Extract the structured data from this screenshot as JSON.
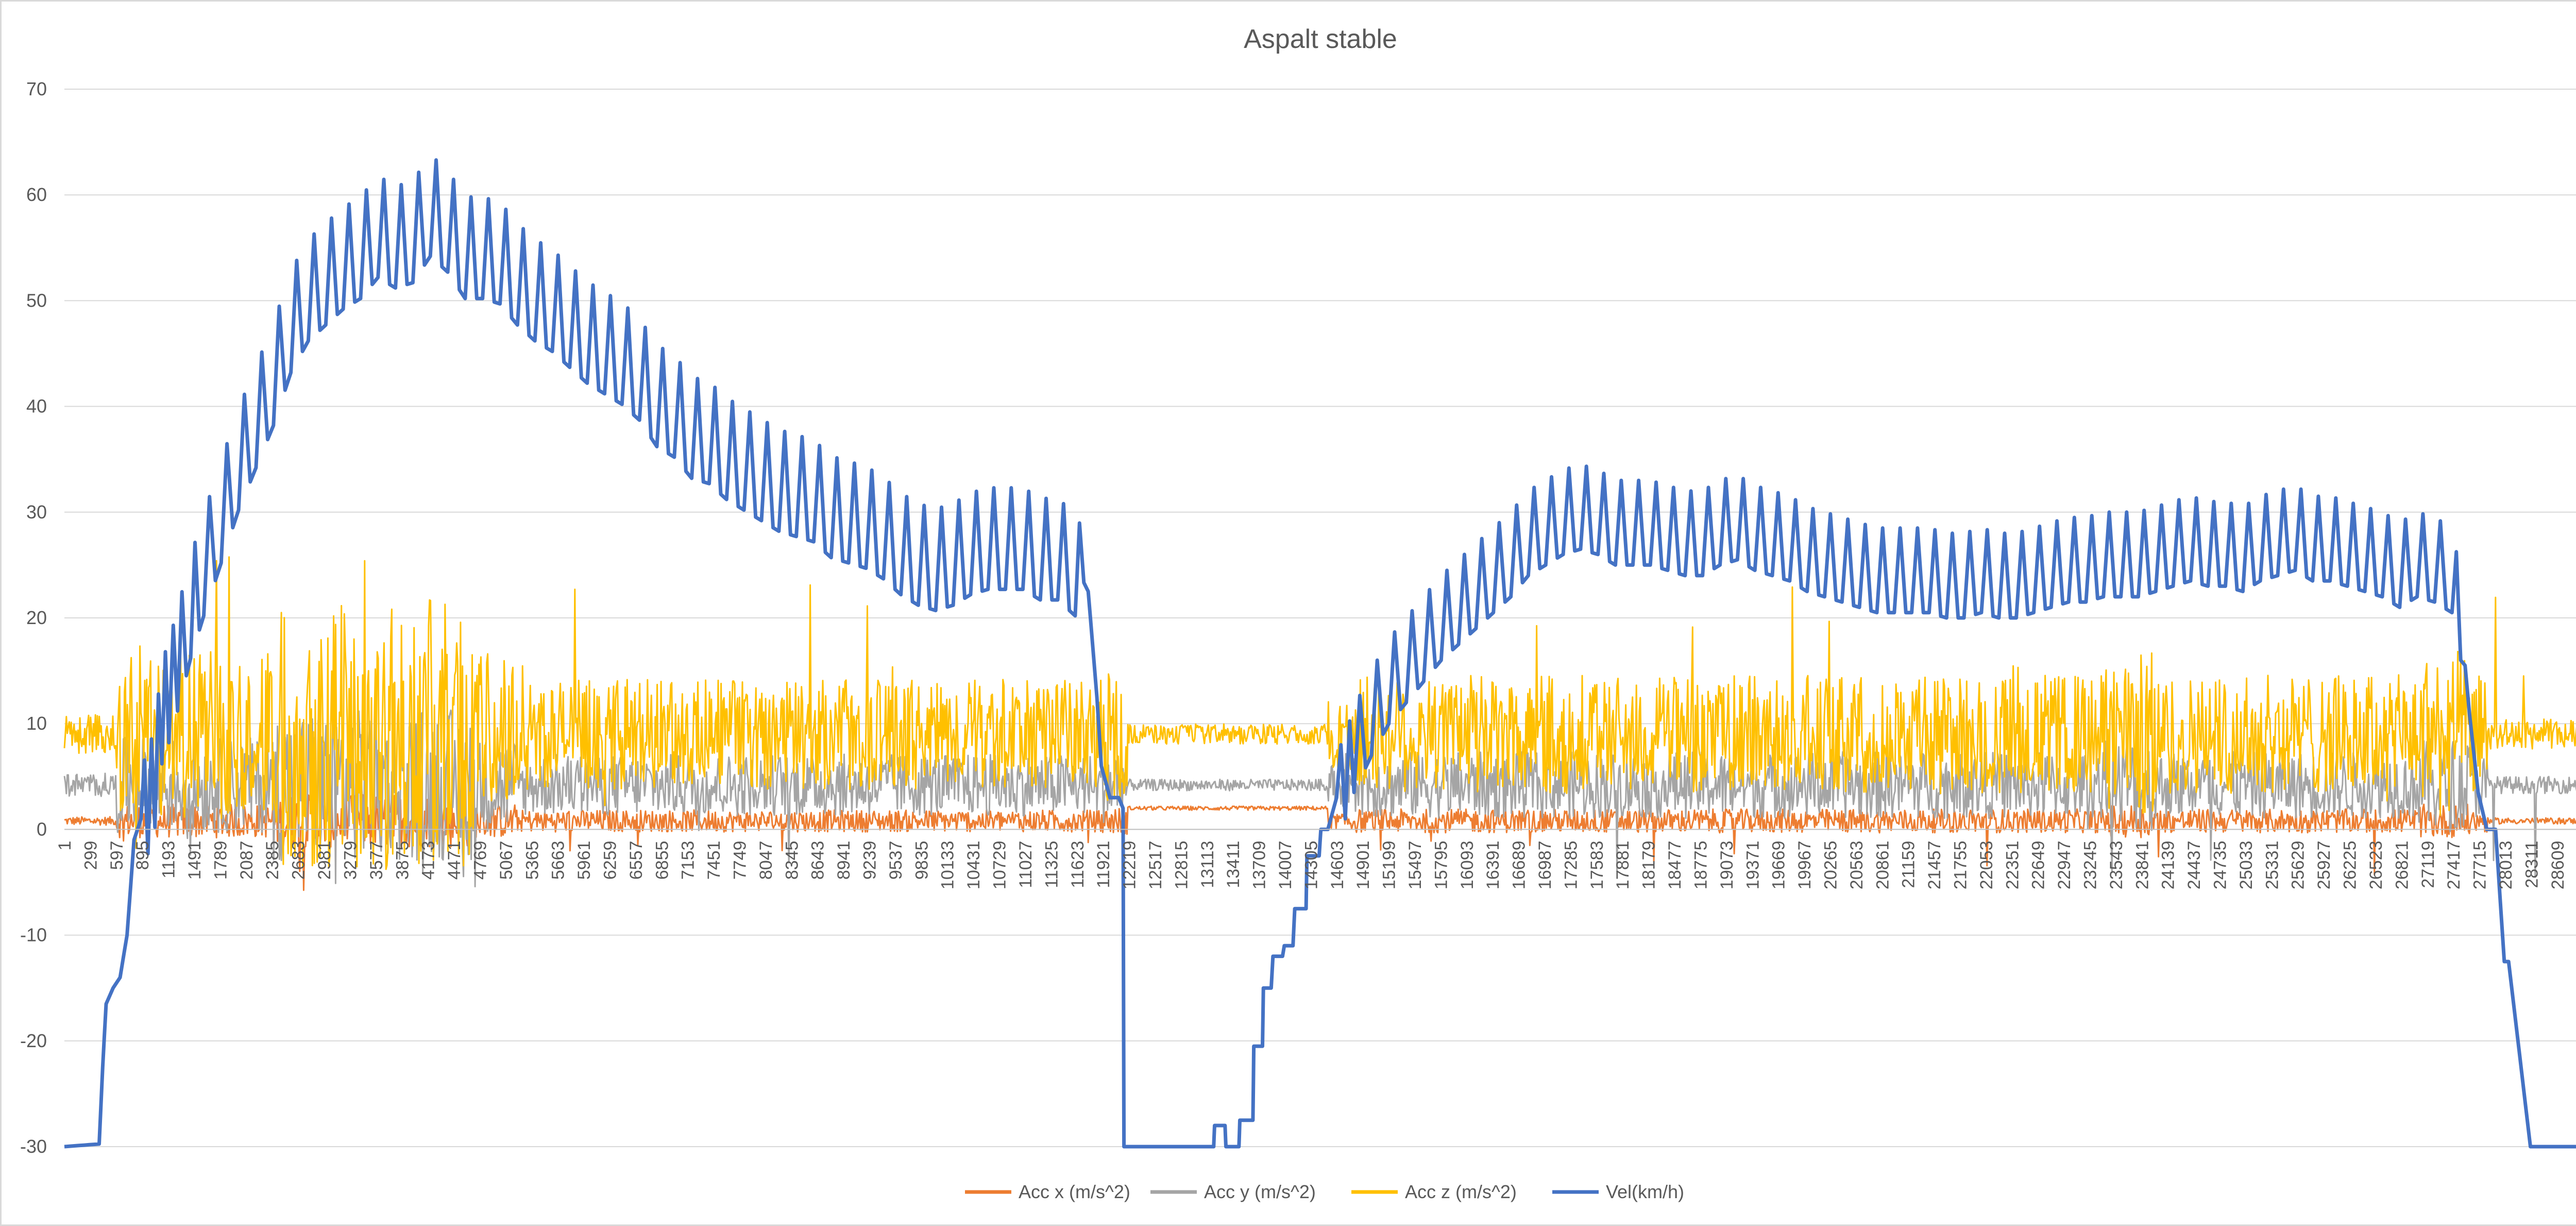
{
  "chart_data": {
    "type": "line",
    "title": "Aspalt stable",
    "legend_position": "bottom",
    "grid": true,
    "primary_axis": {
      "ylim": [
        -30,
        70
      ],
      "ticks": [
        "-30",
        "-20",
        "-10",
        "0",
        "10",
        "20",
        "30",
        "40",
        "50",
        "60",
        "70"
      ]
    },
    "secondary_axis": {
      "ylim": [
        0,
        20
      ],
      "ticks": [
        "0",
        "2",
        "4",
        "6",
        "8",
        "10",
        "12",
        "14",
        "16",
        "18",
        "20"
      ]
    },
    "x_range": [
      1,
      28900
    ],
    "x_tick_labels": [
      "1",
      "299",
      "597",
      "895",
      "1193",
      "1491",
      "1789",
      "2087",
      "2385",
      "2683",
      "2981",
      "3279",
      "3577",
      "3875",
      "4173",
      "4471",
      "4769",
      "5067",
      "5365",
      "5663",
      "5961",
      "6259",
      "6557",
      "6855",
      "7153",
      "7451",
      "7749",
      "8047",
      "8345",
      "8643",
      "8941",
      "9239",
      "9537",
      "9835",
      "10133",
      "10431",
      "10729",
      "11027",
      "11325",
      "11623",
      "11921",
      "12219",
      "12517",
      "12815",
      "13113",
      "13411",
      "13709",
      "14007",
      "14305",
      "14603",
      "14901",
      "15199",
      "15497",
      "15795",
      "16093",
      "16391",
      "16689",
      "16987",
      "17285",
      "17583",
      "17881",
      "18179",
      "18477",
      "18775",
      "19073",
      "19371",
      "19669",
      "19967",
      "20265",
      "20563",
      "20861",
      "21159",
      "21457",
      "21755",
      "22053",
      "22351",
      "22649",
      "22947",
      "23245",
      "23543",
      "23841",
      "24139",
      "24437",
      "24735",
      "25033",
      "25331",
      "25629",
      "25927",
      "26225",
      "26523",
      "26821",
      "27119",
      "27417",
      "27715",
      "28013",
      "28311",
      "28609"
    ],
    "series": [
      {
        "name": "Acc x (m/s^2)",
        "color": "#ED7D31",
        "axis": "primary",
        "profile": "acc_x"
      },
      {
        "name": "Acc y (m/s^2)",
        "color": "#A5A5A5",
        "axis": "primary",
        "profile": "acc_y"
      },
      {
        "name": "Acc z (m/s^2)",
        "color": "#FFC000",
        "axis": "primary",
        "profile": "acc_z"
      },
      {
        "name": "Vel(km/h)",
        "color": "#4472C4",
        "axis": "secondary",
        "x": [
          1,
          400,
          440,
          480,
          560,
          640,
          720,
          800,
          880,
          960,
          1040,
          1120,
          1200,
          1300,
          1450,
          1600,
          1800,
          2000,
          2200,
          2400,
          2600,
          2800,
          3000,
          3200,
          3400,
          3600,
          3800,
          4000,
          4200,
          4400,
          4600,
          4800,
          5000,
          5200,
          5400,
          5600,
          5800,
          6000,
          6200,
          6400,
          6600,
          6800,
          7000,
          7200,
          7400,
          7600,
          7800,
          8000,
          8200,
          8400,
          8600,
          8800,
          9000,
          9200,
          9400,
          9600,
          9800,
          10000,
          10200,
          10400,
          10600,
          10800,
          11000,
          11200,
          11400,
          11600,
          11750,
          11800,
          11850,
          11900,
          12000,
          12100,
          12150,
          12160,
          12500,
          12800,
          13100,
          13190,
          13200,
          13320,
          13330,
          13480,
          13490,
          13640,
          13650,
          13750,
          13760,
          13850,
          13870,
          13980,
          14000,
          14100,
          14120,
          14250,
          14260,
          14400,
          14420,
          14500,
          14600,
          14700,
          14800,
          15000,
          15200,
          15400,
          15600,
          15800,
          16000,
          16200,
          16400,
          16600,
          16800,
          17000,
          17200,
          17400,
          17600,
          17800,
          18000,
          18200,
          18400,
          18600,
          18800,
          19000,
          19200,
          19400,
          19600,
          19800,
          20000,
          20200,
          20400,
          20600,
          20800,
          21000,
          21200,
          21400,
          21600,
          21800,
          22000,
          22200,
          22400,
          22600,
          22800,
          23000,
          23200,
          23400,
          23600,
          23800,
          24000,
          24200,
          24400,
          24600,
          24800,
          25000,
          25200,
          25400,
          25600,
          25800,
          26000,
          26200,
          26400,
          26600,
          26800,
          27000,
          27200,
          27400,
          27500,
          27600,
          27700,
          27800,
          27900,
          28000,
          28050,
          28300,
          28320,
          28900
        ],
        "y": [
          0.0,
          0.05,
          1.5,
          2.7,
          3.0,
          3.2,
          4.0,
          5.8,
          6.2,
          6.5,
          7.0,
          8.2,
          8.6,
          9.2,
          10.2,
          11.0,
          12.0,
          13.0,
          13.8,
          14.6,
          15.6,
          16.2,
          16.5,
          16.8,
          17.0,
          17.4,
          17.2,
          17.3,
          17.8,
          17.5,
          17.0,
          17.0,
          16.9,
          16.5,
          16.2,
          16.0,
          15.7,
          15.4,
          15.2,
          15.0,
          14.7,
          14.2,
          14.0,
          13.6,
          13.5,
          13.2,
          13.0,
          12.8,
          12.6,
          12.5,
          12.4,
          12.1,
          12.0,
          11.9,
          11.7,
          11.4,
          11.2,
          11.1,
          11.2,
          11.4,
          11.5,
          11.5,
          11.5,
          11.3,
          11.3,
          11.0,
          10.5,
          9.5,
          8.5,
          7.2,
          6.6,
          6.6,
          6.4,
          0.0,
          0.0,
          0.0,
          0.0,
          0.0,
          0.4,
          0.4,
          0.0,
          0.0,
          0.5,
          0.5,
          1.9,
          1.9,
          3.0,
          3.0,
          3.6,
          3.6,
          3.8,
          3.8,
          4.5,
          4.5,
          5.5,
          5.5,
          6.0,
          6.0,
          6.6,
          7.0,
          7.5,
          8.2,
          8.8,
          9.2,
          9.6,
          10.0,
          10.3,
          10.6,
          10.9,
          11.2,
          11.6,
          11.8,
          12.0,
          12.1,
          12.0,
          11.8,
          11.8,
          11.8,
          11.7,
          11.6,
          11.6,
          11.8,
          11.9,
          11.7,
          11.6,
          11.5,
          11.3,
          11.2,
          11.1,
          11.0,
          10.9,
          10.9,
          10.9,
          10.9,
          10.8,
          10.8,
          10.9,
          10.8,
          10.8,
          10.9,
          11.0,
          11.1,
          11.1,
          11.2,
          11.2,
          11.2,
          11.3,
          11.4,
          11.5,
          11.4,
          11.4,
          11.3,
          11.5,
          11.6,
          11.7,
          11.5,
          11.5,
          11.4,
          11.3,
          11.2,
          11.0,
          11.2,
          11.1,
          10.9,
          10.0,
          8.2,
          6.7,
          6.0,
          6.0,
          3.5,
          3.5,
          0.0,
          0.0,
          0.0
        ]
      }
    ]
  }
}
